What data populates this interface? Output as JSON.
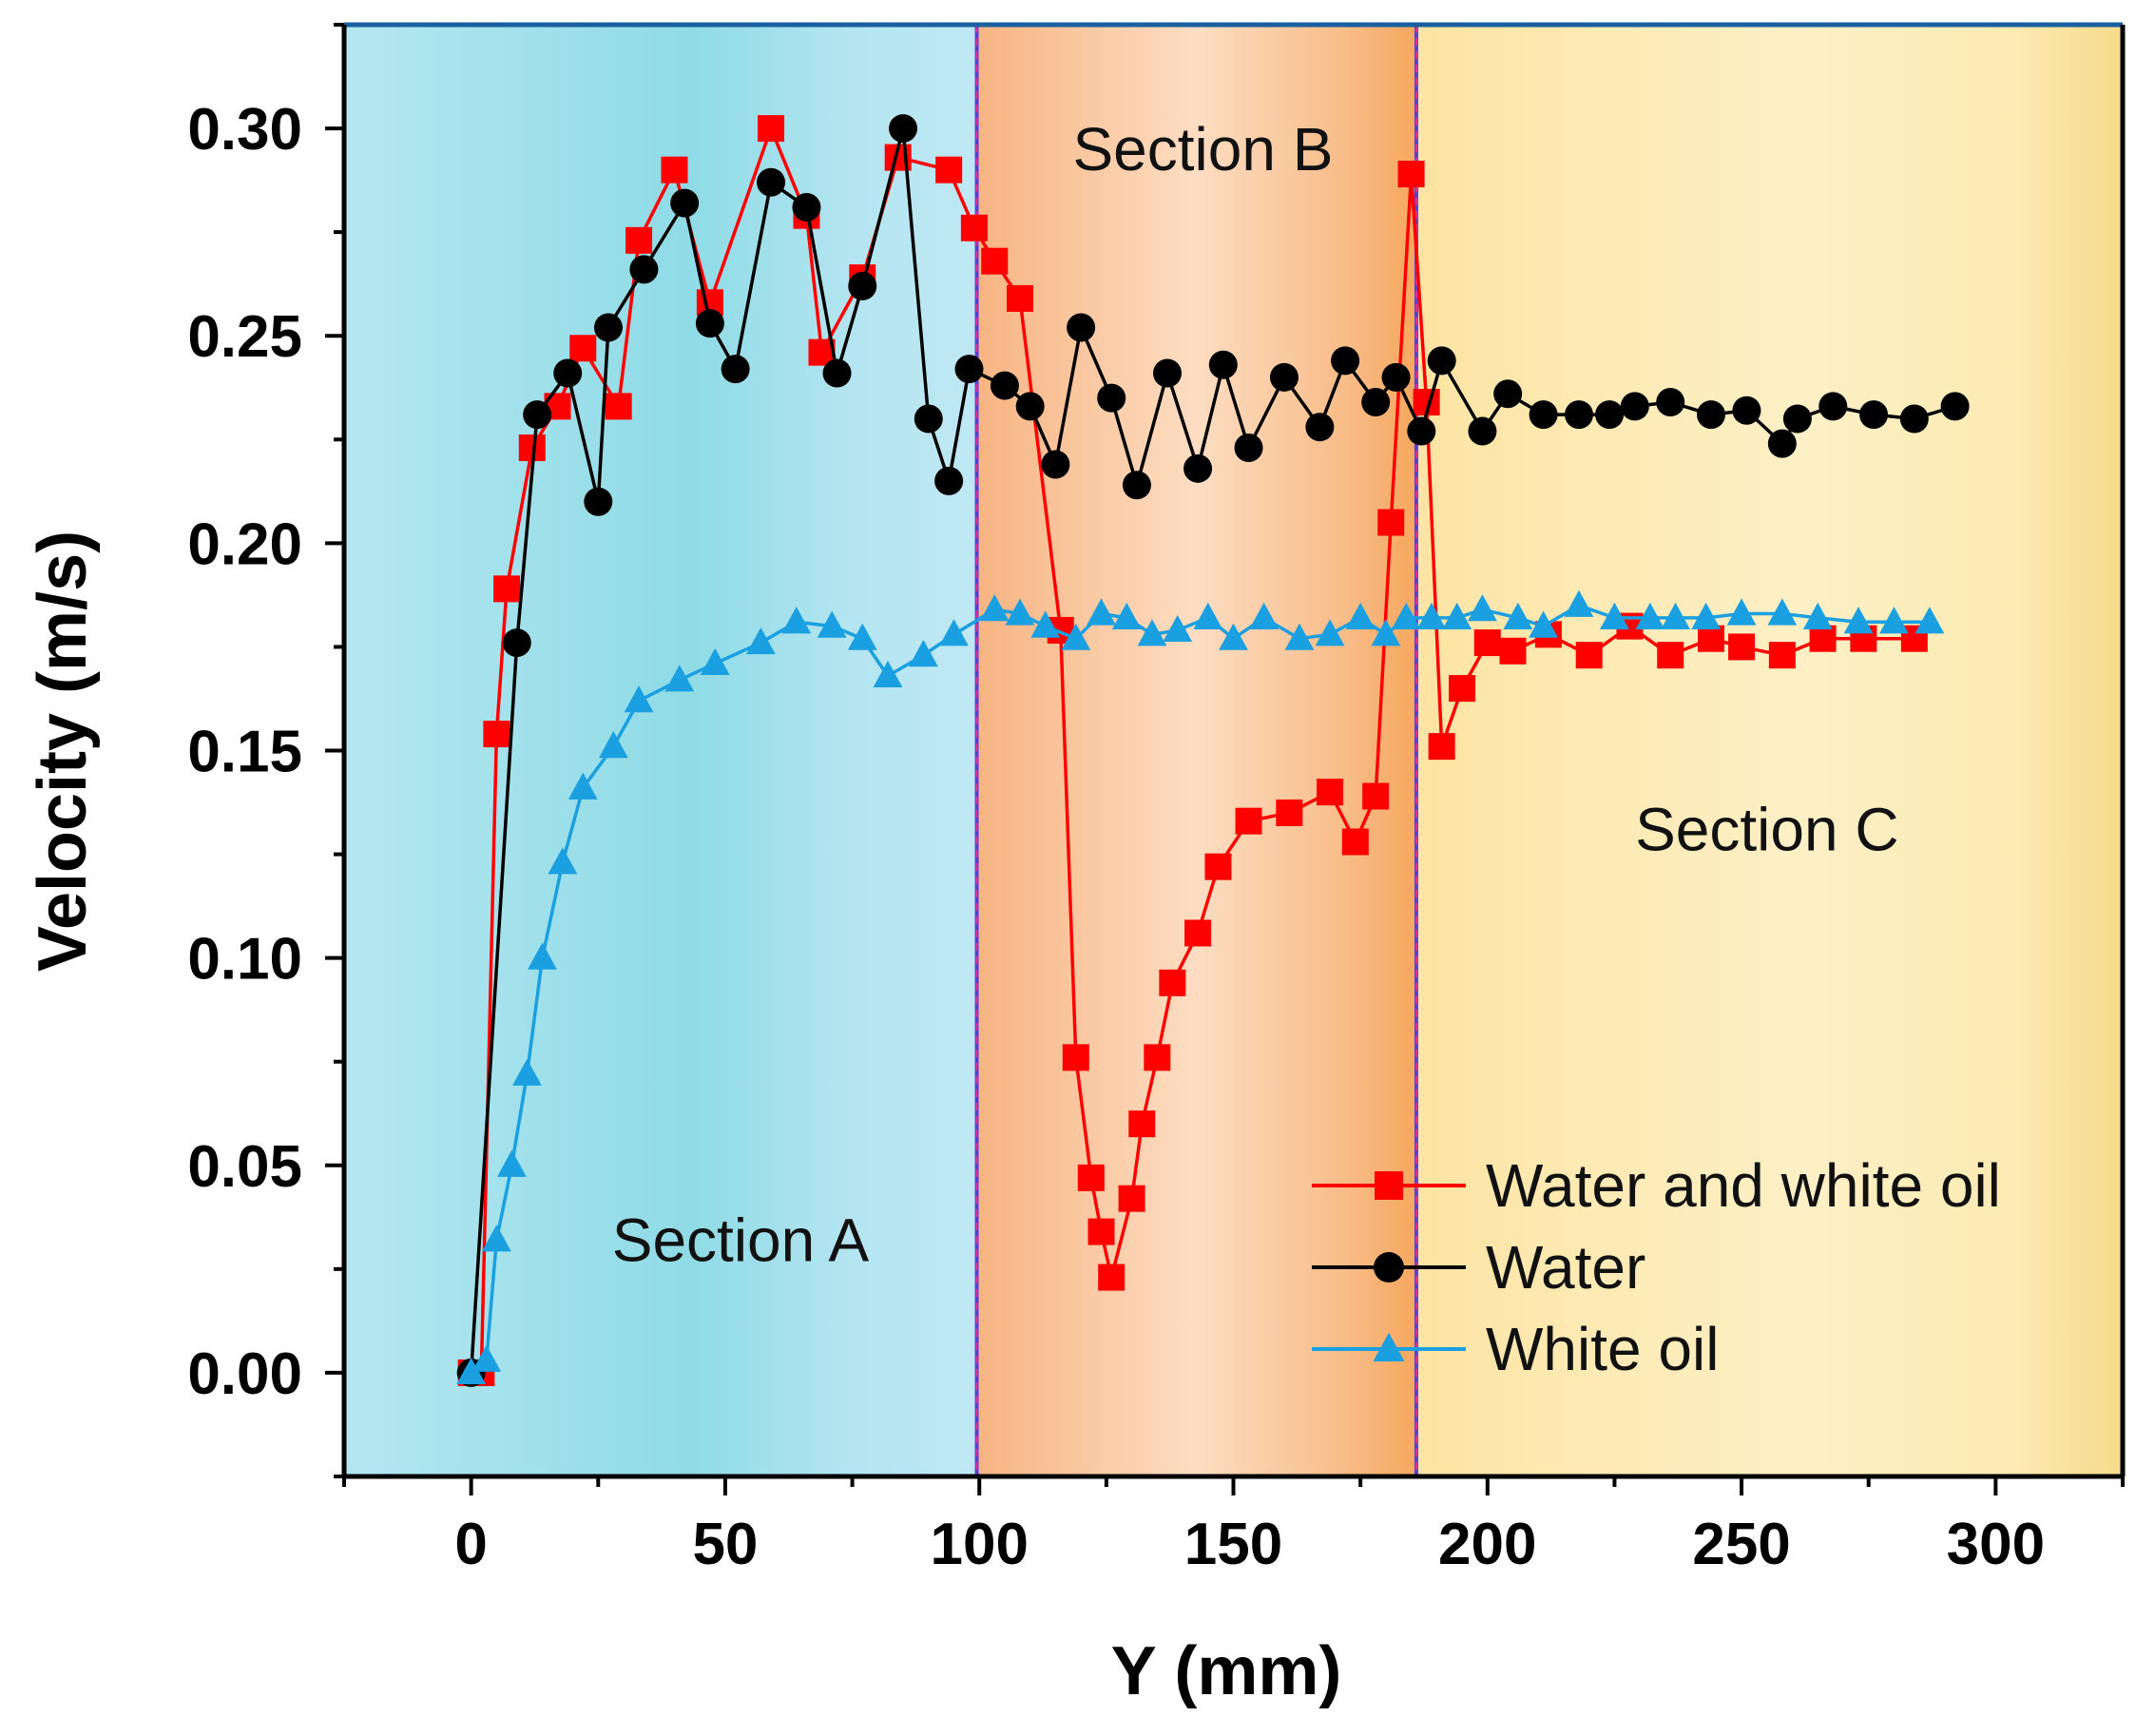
{
  "chart_data": {
    "type": "line",
    "title": "",
    "xlabel": "Y (mm)",
    "ylabel": "Velocity (m/s)",
    "xlim": [
      -25,
      325
    ],
    "ylim": [
      -0.025,
      0.325
    ],
    "xticks": [
      0,
      50,
      100,
      150,
      200,
      250,
      300
    ],
    "xtick_labels": [
      "0",
      "50",
      "100",
      "150",
      "200",
      "250",
      "300"
    ],
    "yticks": [
      0.0,
      0.05,
      0.1,
      0.15,
      0.2,
      0.25,
      0.3
    ],
    "ytick_labels": [
      "0.00",
      "0.05",
      "0.10",
      "0.15",
      "0.20",
      "0.25",
      "0.30"
    ],
    "grid": false,
    "legend_position": "bottom-right",
    "boundaries": [
      99.5,
      186
    ],
    "sections": [
      {
        "name": "Section A",
        "x_start": -25,
        "x_end": 99.5,
        "label_x": 53,
        "label_y": 0.032
      },
      {
        "name": "Section B",
        "x_start": 99.5,
        "x_end": 186,
        "label_x": 144,
        "label_y": 0.295
      },
      {
        "name": "Section C",
        "x_start": 186,
        "x_end": 325,
        "label_x": 255,
        "label_y": 0.131
      }
    ],
    "series": [
      {
        "name": "Water and white oil",
        "color": "#ff0000",
        "marker": "square",
        "x": [
          0,
          2,
          5,
          7,
          12,
          17,
          22,
          29,
          33,
          40,
          47,
          59,
          66,
          69,
          77,
          84,
          94,
          99,
          103,
          108,
          116,
          119,
          122,
          124,
          126,
          130,
          132,
          135,
          138,
          143,
          147,
          153,
          161,
          169,
          174,
          178,
          181,
          185,
          188,
          191,
          195,
          200,
          205,
          212,
          220,
          228,
          236,
          244,
          250,
          258,
          266,
          274,
          284
        ],
        "y": [
          0.0,
          0.0,
          0.154,
          0.189,
          0.223,
          0.233,
          0.247,
          0.233,
          0.273,
          0.29,
          0.258,
          0.3,
          0.279,
          0.246,
          0.264,
          0.293,
          0.29,
          0.276,
          0.268,
          0.259,
          0.179,
          0.076,
          0.047,
          0.034,
          0.023,
          0.042,
          0.06,
          0.076,
          0.094,
          0.106,
          0.122,
          0.133,
          0.135,
          0.14,
          0.128,
          0.139,
          0.205,
          0.289,
          0.234,
          0.151,
          0.165,
          0.176,
          0.174,
          0.178,
          0.173,
          0.18,
          0.173,
          0.177,
          0.175,
          0.173,
          0.177,
          0.177,
          0.177
        ]
      },
      {
        "name": "Water",
        "color": "#000000",
        "marker": "circle",
        "x": [
          0,
          9,
          13,
          19,
          25,
          27,
          34,
          42,
          47,
          52,
          59,
          66,
          72,
          77,
          85,
          90,
          94,
          98,
          105,
          110,
          115,
          120,
          126,
          131,
          137,
          143,
          148,
          153,
          160,
          167,
          172,
          178,
          182,
          187,
          191,
          199,
          204,
          211,
          218,
          224,
          229,
          236,
          244,
          251,
          258,
          261,
          268,
          276,
          284,
          292
        ],
        "y": [
          0.0,
          0.176,
          0.231,
          0.241,
          0.21,
          0.252,
          0.266,
          0.282,
          0.253,
          0.242,
          0.287,
          0.281,
          0.241,
          0.262,
          0.3,
          0.23,
          0.215,
          0.242,
          0.238,
          0.233,
          0.219,
          0.252,
          0.235,
          0.214,
          0.241,
          0.218,
          0.243,
          0.223,
          0.24,
          0.228,
          0.244,
          0.234,
          0.24,
          0.227,
          0.244,
          0.227,
          0.236,
          0.231,
          0.231,
          0.231,
          0.233,
          0.234,
          0.231,
          0.232,
          0.224,
          0.23,
          0.233,
          0.231,
          0.23,
          0.233
        ]
      },
      {
        "name": "White oil",
        "color": "#1a9fe0",
        "marker": "triangle",
        "x": [
          0,
          3,
          5,
          8,
          11,
          14,
          18,
          22,
          28,
          33,
          41,
          48,
          57,
          64,
          71,
          77,
          82,
          89,
          95,
          103,
          108,
          113,
          119,
          124,
          129,
          134,
          139,
          145,
          150,
          156,
          163,
          169,
          175,
          180,
          184,
          189,
          194,
          199,
          206,
          211,
          218,
          225,
          232,
          237,
          243,
          250,
          258,
          265,
          273,
          280,
          287
        ],
        "y": [
          0.0,
          0.003,
          0.032,
          0.05,
          0.072,
          0.1,
          0.123,
          0.141,
          0.151,
          0.162,
          0.167,
          0.171,
          0.176,
          0.181,
          0.18,
          0.177,
          0.168,
          0.173,
          0.178,
          0.184,
          0.183,
          0.18,
          0.177,
          0.183,
          0.182,
          0.178,
          0.179,
          0.182,
          0.177,
          0.182,
          0.177,
          0.178,
          0.182,
          0.178,
          0.182,
          0.182,
          0.182,
          0.184,
          0.182,
          0.18,
          0.185,
          0.182,
          0.182,
          0.182,
          0.182,
          0.183,
          0.183,
          0.182,
          0.181,
          0.181,
          0.181
        ]
      }
    ]
  }
}
